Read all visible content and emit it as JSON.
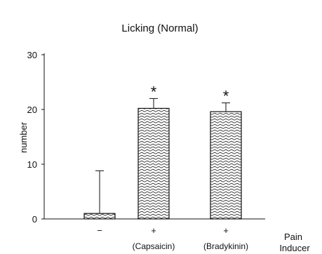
{
  "chart_data": {
    "type": "bar",
    "title": "Licking (Normal)",
    "ylabel": "number",
    "xlabel": "Pain\nInducer",
    "ylim": [
      0,
      30
    ],
    "yticks": [
      0,
      10,
      20,
      30
    ],
    "categories": [
      {
        "sign": "−",
        "name": ""
      },
      {
        "sign": "+",
        "name": "(Capsaicin)"
      },
      {
        "sign": "+",
        "name": "(Bradykinin)"
      }
    ],
    "values": [
      1,
      20.2,
      19.6
    ],
    "error_upper": [
      8.8,
      22.0,
      21.2
    ],
    "significance": [
      "",
      "*",
      "*"
    ],
    "bar_fill": "wavy hatch",
    "bar_color": "#222222"
  }
}
